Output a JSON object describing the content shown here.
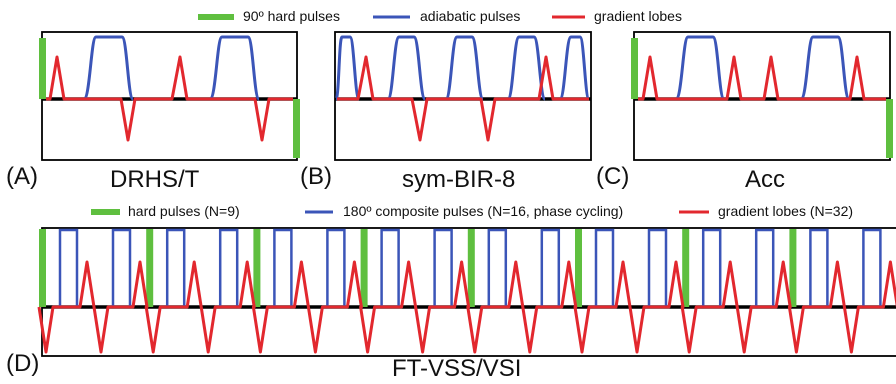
{
  "legend_top": [
    {
      "label": "90º hard pulses",
      "color": "#5fbf3f"
    },
    {
      "label": "adiabatic pulses",
      "color": "#3b55b8"
    },
    {
      "label": "gradient lobes",
      "color": "#e2282e"
    }
  ],
  "legend_bottom": [
    {
      "label": "hard pulses (N=9)",
      "color": "#5fbf3f"
    },
    {
      "label": "180º composite pulses (N=16, phase cycling)",
      "color": "#3b55b8"
    },
    {
      "label": "gradient lobes (N=32)",
      "color": "#e2282e"
    }
  ],
  "panels": {
    "A": {
      "letter": "(A)",
      "title": "DRHS/T"
    },
    "B": {
      "letter": "(B)",
      "title": "sym-BIR-8"
    },
    "C": {
      "letter": "(C)",
      "title": "Acc"
    },
    "D": {
      "letter": "(D)",
      "title": "FT-VSS/VSI"
    }
  },
  "colors": {
    "hard": "#5fbf3f",
    "adiabatic": "#3b55b8",
    "gradient": "#e2282e",
    "axis": "#000000"
  }
}
